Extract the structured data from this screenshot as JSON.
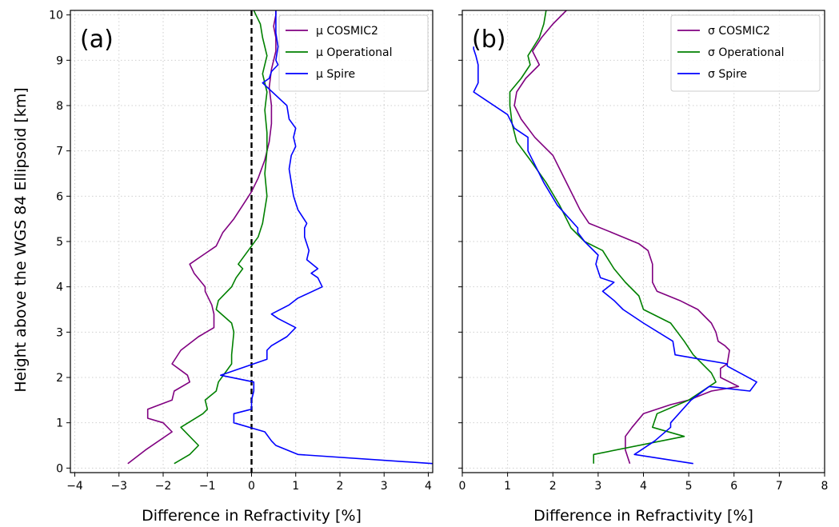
{
  "chart_data": [
    {
      "type": "line",
      "panel_label": "(a)",
      "xlabel": "Difference in Refractivity  [%]",
      "ylabel": "Height above the WGS 84 Ellipsoid  [km]",
      "xlim": [
        -4.1,
        4.1
      ],
      "ylim": [
        -0.1,
        10.1
      ],
      "xticks": [
        -4,
        -3,
        -2,
        -1,
        0,
        1,
        2,
        3,
        4
      ],
      "yticks": [
        0,
        1,
        2,
        3,
        4,
        5,
        6,
        7,
        8,
        9,
        10
      ],
      "grid": true,
      "legend_position": "top-right",
      "reference_line": {
        "x": 0,
        "style": "dashed",
        "color": "#000000"
      },
      "series": [
        {
          "name": "μ COSMIC2",
          "color": "#800080",
          "points": [
            [
              -2.8,
              0.1
            ],
            [
              -2.4,
              0.4
            ],
            [
              -1.8,
              0.8
            ],
            [
              -2.0,
              1.0
            ],
            [
              -2.35,
              1.1
            ],
            [
              -2.35,
              1.3
            ],
            [
              -1.8,
              1.5
            ],
            [
              -1.75,
              1.7
            ],
            [
              -1.4,
              1.9
            ],
            [
              -1.45,
              2.05
            ],
            [
              -1.8,
              2.3
            ],
            [
              -1.6,
              2.6
            ],
            [
              -1.2,
              2.9
            ],
            [
              -0.85,
              3.1
            ],
            [
              -0.85,
              3.4
            ],
            [
              -0.9,
              3.6
            ],
            [
              -1.05,
              3.9
            ],
            [
              -1.05,
              4.0
            ],
            [
              -1.3,
              4.3
            ],
            [
              -1.4,
              4.5
            ],
            [
              -1.1,
              4.7
            ],
            [
              -0.8,
              4.9
            ],
            [
              -0.65,
              5.2
            ],
            [
              -0.4,
              5.5
            ],
            [
              -0.2,
              5.8
            ],
            [
              0.0,
              6.1
            ],
            [
              0.15,
              6.4
            ],
            [
              0.3,
              6.8
            ],
            [
              0.4,
              7.2
            ],
            [
              0.45,
              7.6
            ],
            [
              0.45,
              8.0
            ],
            [
              0.4,
              8.4
            ],
            [
              0.45,
              8.8
            ],
            [
              0.55,
              9.2
            ],
            [
              0.55,
              9.5
            ],
            [
              0.5,
              9.75
            ],
            [
              0.55,
              10.0
            ],
            [
              0.55,
              10.1
            ]
          ]
        },
        {
          "name": "μ Operational",
          "color": "#008000",
          "points": [
            [
              -1.75,
              0.1
            ],
            [
              -1.4,
              0.3
            ],
            [
              -1.2,
              0.5
            ],
            [
              -1.6,
              0.9
            ],
            [
              -1.1,
              1.2
            ],
            [
              -1.0,
              1.3
            ],
            [
              -1.05,
              1.5
            ],
            [
              -0.8,
              1.7
            ],
            [
              -0.75,
              1.9
            ],
            [
              -0.45,
              2.3
            ],
            [
              -0.45,
              2.5
            ],
            [
              -0.4,
              3.0
            ],
            [
              -0.45,
              3.2
            ],
            [
              -0.8,
              3.5
            ],
            [
              -0.75,
              3.7
            ],
            [
              -0.45,
              4.0
            ],
            [
              -0.35,
              4.2
            ],
            [
              -0.2,
              4.4
            ],
            [
              -0.3,
              4.5
            ],
            [
              0.0,
              4.9
            ],
            [
              0.15,
              5.1
            ],
            [
              0.25,
              5.4
            ],
            [
              0.35,
              6.0
            ],
            [
              0.3,
              6.5
            ],
            [
              0.35,
              7.0
            ],
            [
              0.35,
              7.4
            ],
            [
              0.3,
              7.9
            ],
            [
              0.35,
              8.3
            ],
            [
              0.25,
              8.7
            ],
            [
              0.35,
              9.1
            ],
            [
              0.25,
              9.5
            ],
            [
              0.2,
              9.8
            ],
            [
              0.1,
              10.0
            ],
            [
              0.05,
              10.1
            ]
          ]
        },
        {
          "name": "μ Spire",
          "color": "#0000ff",
          "points": [
            [
              4.1,
              0.1
            ],
            [
              1.05,
              0.3
            ],
            [
              0.55,
              0.5
            ],
            [
              0.45,
              0.6
            ],
            [
              0.3,
              0.8
            ],
            [
              -0.4,
              1.0
            ],
            [
              -0.4,
              1.2
            ],
            [
              0.0,
              1.3
            ],
            [
              0.0,
              1.5
            ],
            [
              0.05,
              1.7
            ],
            [
              0.05,
              1.9
            ],
            [
              -0.7,
              2.05
            ],
            [
              0.35,
              2.4
            ],
            [
              0.35,
              2.6
            ],
            [
              0.45,
              2.7
            ],
            [
              0.8,
              2.9
            ],
            [
              1.0,
              3.1
            ],
            [
              0.6,
              3.3
            ],
            [
              0.45,
              3.4
            ],
            [
              0.85,
              3.6
            ],
            [
              1.05,
              3.75
            ],
            [
              1.6,
              4.0
            ],
            [
              1.5,
              4.2
            ],
            [
              1.35,
              4.3
            ],
            [
              1.5,
              4.4
            ],
            [
              1.25,
              4.6
            ],
            [
              1.3,
              4.8
            ],
            [
              1.2,
              5.1
            ],
            [
              1.2,
              5.3
            ],
            [
              1.25,
              5.4
            ],
            [
              1.05,
              5.7
            ],
            [
              0.95,
              6.0
            ],
            [
              0.9,
              6.3
            ],
            [
              0.85,
              6.6
            ],
            [
              0.9,
              6.9
            ],
            [
              0.95,
              7.0
            ],
            [
              1.0,
              7.1
            ],
            [
              0.95,
              7.3
            ],
            [
              1.0,
              7.5
            ],
            [
              0.85,
              7.7
            ],
            [
              0.8,
              8.0
            ],
            [
              0.25,
              8.5
            ],
            [
              0.4,
              8.6
            ],
            [
              0.45,
              8.75
            ],
            [
              0.6,
              8.9
            ],
            [
              0.55,
              9.0
            ],
            [
              0.6,
              9.3
            ],
            [
              0.55,
              9.6
            ],
            [
              0.55,
              10.1
            ]
          ]
        }
      ]
    },
    {
      "type": "line",
      "panel_label": "(b)",
      "xlabel": "Difference in Refractivity  [%]",
      "ylabel": "",
      "xlim": [
        0,
        8
      ],
      "ylim": [
        -0.1,
        10.1
      ],
      "xticks": [
        0,
        1,
        2,
        3,
        4,
        5,
        6,
        7,
        8
      ],
      "yticks": [
        0,
        1,
        2,
        3,
        4,
        5,
        6,
        7,
        8,
        9,
        10
      ],
      "grid": true,
      "legend_position": "top-right",
      "series": [
        {
          "name": "σ COSMIC2",
          "color": "#800080",
          "points": [
            [
              3.7,
              0.1
            ],
            [
              3.6,
              0.4
            ],
            [
              3.6,
              0.7
            ],
            [
              3.75,
              0.9
            ],
            [
              4.0,
              1.2
            ],
            [
              4.6,
              1.4
            ],
            [
              5.0,
              1.5
            ],
            [
              5.5,
              1.7
            ],
            [
              6.1,
              1.8
            ],
            [
              5.7,
              2.0
            ],
            [
              5.7,
              2.2
            ],
            [
              5.85,
              2.3
            ],
            [
              5.9,
              2.6
            ],
            [
              5.8,
              2.7
            ],
            [
              5.65,
              2.8
            ],
            [
              5.6,
              3.0
            ],
            [
              5.5,
              3.2
            ],
            [
              5.2,
              3.5
            ],
            [
              4.8,
              3.7
            ],
            [
              4.3,
              3.9
            ],
            [
              4.2,
              4.1
            ],
            [
              4.2,
              4.5
            ],
            [
              4.1,
              4.8
            ],
            [
              3.9,
              4.95
            ],
            [
              3.3,
              5.2
            ],
            [
              2.8,
              5.4
            ],
            [
              2.6,
              5.7
            ],
            [
              2.35,
              6.2
            ],
            [
              2.2,
              6.5
            ],
            [
              2.0,
              6.9
            ],
            [
              1.6,
              7.3
            ],
            [
              1.3,
              7.7
            ],
            [
              1.15,
              8.0
            ],
            [
              1.2,
              8.3
            ],
            [
              1.4,
              8.6
            ],
            [
              1.7,
              8.9
            ],
            [
              1.55,
              9.2
            ],
            [
              1.75,
              9.5
            ],
            [
              2.0,
              9.8
            ],
            [
              2.3,
              10.1
            ]
          ]
        },
        {
          "name": "σ Operational",
          "color": "#008000",
          "points": [
            [
              2.9,
              0.1
            ],
            [
              2.9,
              0.3
            ],
            [
              4.9,
              0.7
            ],
            [
              4.2,
              0.9
            ],
            [
              4.3,
              1.2
            ],
            [
              5.0,
              1.5
            ],
            [
              5.6,
              1.9
            ],
            [
              5.5,
              2.1
            ],
            [
              5.1,
              2.5
            ],
            [
              4.9,
              2.8
            ],
            [
              4.6,
              3.2
            ],
            [
              4.0,
              3.5
            ],
            [
              3.9,
              3.8
            ],
            [
              3.6,
              4.1
            ],
            [
              3.35,
              4.4
            ],
            [
              3.1,
              4.8
            ],
            [
              2.7,
              5.0
            ],
            [
              2.4,
              5.3
            ],
            [
              2.15,
              5.8
            ],
            [
              1.85,
              6.3
            ],
            [
              1.5,
              6.8
            ],
            [
              1.2,
              7.2
            ],
            [
              1.1,
              7.6
            ],
            [
              1.05,
              8.0
            ],
            [
              1.05,
              8.3
            ],
            [
              1.3,
              8.6
            ],
            [
              1.5,
              8.9
            ],
            [
              1.45,
              9.1
            ],
            [
              1.7,
              9.5
            ],
            [
              1.8,
              9.8
            ],
            [
              1.85,
              10.1
            ]
          ]
        },
        {
          "name": "σ Spire",
          "color": "#0000ff",
          "points": [
            [
              5.1,
              0.1
            ],
            [
              3.8,
              0.3
            ],
            [
              4.25,
              0.6
            ],
            [
              4.6,
              0.9
            ],
            [
              4.6,
              1.0
            ],
            [
              5.05,
              1.5
            ],
            [
              5.45,
              1.8
            ],
            [
              6.35,
              1.7
            ],
            [
              6.5,
              1.9
            ],
            [
              5.85,
              2.25
            ],
            [
              5.85,
              2.3
            ],
            [
              4.7,
              2.5
            ],
            [
              4.65,
              2.8
            ],
            [
              4.0,
              3.2
            ],
            [
              3.55,
              3.5
            ],
            [
              3.35,
              3.7
            ],
            [
              3.1,
              3.9
            ],
            [
              3.35,
              4.1
            ],
            [
              3.05,
              4.2
            ],
            [
              2.95,
              4.5
            ],
            [
              3.0,
              4.7
            ],
            [
              2.7,
              5.0
            ],
            [
              2.55,
              5.2
            ],
            [
              2.55,
              5.3
            ],
            [
              2.1,
              5.8
            ],
            [
              1.8,
              6.3
            ],
            [
              1.6,
              6.7
            ],
            [
              1.45,
              7.0
            ],
            [
              1.45,
              7.3
            ],
            [
              1.15,
              7.5
            ],
            [
              1.0,
              7.8
            ],
            [
              0.55,
              8.1
            ],
            [
              0.25,
              8.3
            ],
            [
              0.35,
              8.5
            ],
            [
              0.35,
              8.9
            ],
            [
              0.3,
              9.1
            ],
            [
              0.25,
              9.25
            ],
            [
              0.25,
              9.3
            ]
          ]
        }
      ]
    }
  ]
}
